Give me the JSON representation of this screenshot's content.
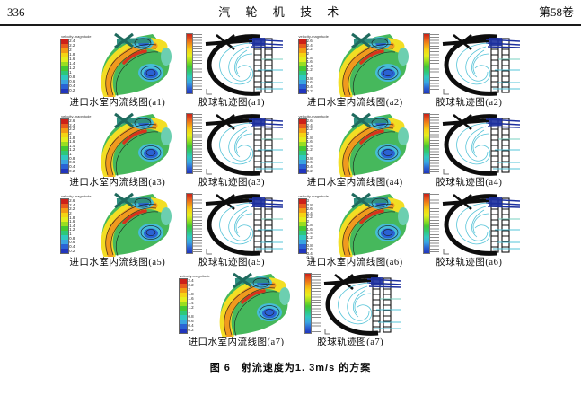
{
  "header": {
    "page_number": "336",
    "journal_title": "汽 轮 机 技 术",
    "volume": "第58卷"
  },
  "figure": {
    "caption": "图 6　射流速度为1. 3m/s 的方案",
    "colorbar_title": "velocity-magnitude",
    "palette": [
      "#cc2018",
      "#e85c1c",
      "#f39c14",
      "#f5d414",
      "#e4ee1e",
      "#9ade20",
      "#44c832",
      "#2ec878",
      "#30c8c0",
      "#3aa4e0",
      "#2a62d4",
      "#2136bc"
    ],
    "panels": [
      {
        "id": "a1",
        "stream_label": "进口水室内流线图(a1)",
        "traj_label": "胶球轨迹图(a1)",
        "ticks": [
          "2.4",
          "2.2",
          "2",
          "1.8",
          "1.6",
          "1.4",
          "1.2",
          "1",
          "0.8",
          "0.6",
          "0.4",
          "0.2"
        ]
      },
      {
        "id": "a2",
        "stream_label": "进口水室内流线图(a2)",
        "traj_label": "胶球轨迹图(a2)",
        "ticks": [
          "2.6",
          "2.4",
          "2.2",
          "2",
          "1.8",
          "1.6",
          "1.4",
          "1.2",
          "1",
          "0.8",
          "0.6",
          "0.4",
          "0.2"
        ]
      },
      {
        "id": "a3",
        "stream_label": "进口水室内流线图(a3)",
        "traj_label": "胶球轨迹图(a3)",
        "ticks": [
          "2.6",
          "2.4",
          "2.2",
          "2",
          "1.8",
          "1.6",
          "1.4",
          "1.2",
          "1",
          "0.8",
          "0.6",
          "0.4",
          "0.2"
        ]
      },
      {
        "id": "a4",
        "stream_label": "进口水室内流线图(a4)",
        "traj_label": "胶球轨迹图(a4)",
        "ticks": [
          "2.6",
          "2.4",
          "2.2",
          "2",
          "1.8",
          "1.6",
          "1.4",
          "1.2",
          "1",
          "0.8",
          "0.6",
          "0.4",
          "0.2"
        ]
      },
      {
        "id": "a5",
        "stream_label": "进口水室内流线图(a5)",
        "traj_label": "胶球轨迹图(a5)",
        "ticks": [
          "2.6",
          "2.4",
          "2.2",
          "2",
          "1.8",
          "1.6",
          "1.4",
          "1.2",
          "1",
          "0.8",
          "0.6",
          "0.4",
          "0.2"
        ]
      },
      {
        "id": "a6",
        "stream_label": "进口水室内流线图(a6)",
        "traj_label": "胶球轨迹图(a6)",
        "ticks": [
          "3",
          "2.8",
          "2.6",
          "2.4",
          "2.2",
          "2",
          "1.8",
          "1.6",
          "1.4",
          "1.2",
          "1",
          "0.8",
          "0.6",
          "0.4",
          "0.2"
        ]
      },
      {
        "id": "a7",
        "stream_label": "进口水室内流线图(a7)",
        "traj_label": "胶球轨迹图(a7)",
        "ticks": [
          "2.4",
          "2.2",
          "2",
          "1.8",
          "1.6",
          "1.4",
          "1.2",
          "1",
          "0.8",
          "0.6",
          "0.4",
          "0.2"
        ]
      }
    ]
  }
}
